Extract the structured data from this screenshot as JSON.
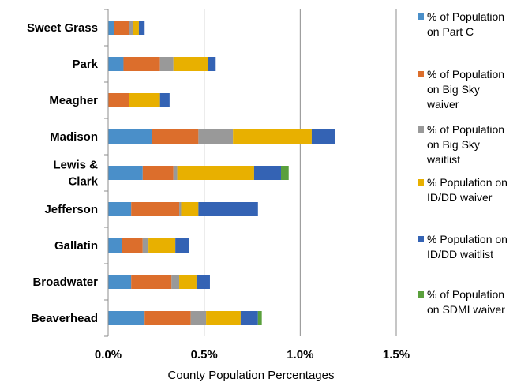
{
  "chart_data": {
    "type": "bar",
    "orientation": "horizontal",
    "stacked": true,
    "title": "",
    "xlabel": "County Population Percentages",
    "ylabel": "",
    "xlim": [
      0,
      1.5
    ],
    "x_ticks": [
      {
        "value": 0,
        "label": "0.0%"
      },
      {
        "value": 0.5,
        "label": "0.5%"
      },
      {
        "value": 1.0,
        "label": "1.0%"
      },
      {
        "value": 1.5,
        "label": "1.5%"
      }
    ],
    "grid": "vertical gridlines",
    "legend_position": "right",
    "categories": [
      [
        "Sweet Grass"
      ],
      [
        "Park"
      ],
      [
        "Meagher"
      ],
      [
        "Madison"
      ],
      [
        "Lewis &",
        "Clark"
      ],
      [
        "Jefferson"
      ],
      [
        "Gallatin"
      ],
      [
        "Broadwater"
      ],
      [
        "Beaverhead"
      ]
    ],
    "series": [
      {
        "name": "% of Population on Part C",
        "color": "#4a8fc9",
        "values": [
          0.03,
          0.08,
          0.0,
          0.23,
          0.18,
          0.12,
          0.07,
          0.12,
          0.19
        ]
      },
      {
        "name": "% of Population on Big Sky waiver",
        "color": "#dc6e2c",
        "values": [
          0.08,
          0.19,
          0.11,
          0.24,
          0.16,
          0.25,
          0.11,
          0.21,
          0.24
        ]
      },
      {
        "name": "% of Population on Big Sky waitlist",
        "color": "#999999",
        "values": [
          0.02,
          0.07,
          0.0,
          0.18,
          0.02,
          0.01,
          0.03,
          0.04,
          0.08
        ]
      },
      {
        "name": "% Population on ID/DD waiver",
        "color": "#e8b000",
        "values": [
          0.03,
          0.18,
          0.16,
          0.41,
          0.4,
          0.09,
          0.14,
          0.09,
          0.18
        ]
      },
      {
        "name": "% Population on ID/DD waitlist",
        "color": "#3463b4",
        "values": [
          0.03,
          0.04,
          0.05,
          0.12,
          0.14,
          0.31,
          0.07,
          0.07,
          0.09
        ]
      },
      {
        "name": "% of Population on SDMI waiver",
        "color": "#5aa03c",
        "values": [
          0.0,
          0.0,
          0.0,
          0.0,
          0.04,
          0.0,
          0.0,
          0.0,
          0.02
        ]
      }
    ]
  },
  "legend_labels": [
    [
      "% of Population",
      "on Part C"
    ],
    [
      "% of Population",
      "on Big Sky",
      "waiver"
    ],
    [
      "% of Population",
      "on Big Sky",
      "waitlist"
    ],
    [
      "% Population on",
      "ID/DD waiver"
    ],
    [
      "% Population on",
      "ID/DD waitlist"
    ],
    [
      "% of Population",
      "on SDMI waiver"
    ]
  ]
}
